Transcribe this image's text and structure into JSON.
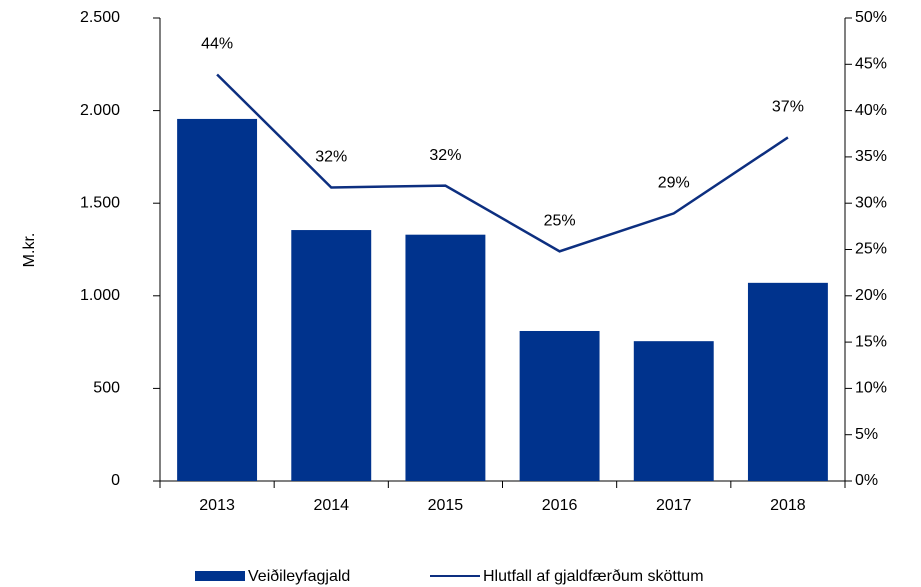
{
  "chart_data": {
    "type": "bar-line",
    "categories": [
      "2013",
      "2014",
      "2015",
      "2016",
      "2017",
      "2018"
    ],
    "y_label": "M.kr.",
    "series": [
      {
        "name": "Veiðileyfagjald",
        "type": "bar",
        "color": "#00338d",
        "values": [
          1955,
          1355,
          1330,
          810,
          755,
          1070
        ]
      },
      {
        "name": "Hlutfall af gjaldfærðum sköttum",
        "type": "line",
        "axis": "y2",
        "color": "#0d2f80",
        "values": [
          43.9,
          31.7,
          31.9,
          24.8,
          28.9,
          37.1
        ],
        "value_labels": [
          "44%",
          "32%",
          "32%",
          "25%",
          "29%",
          "37%"
        ]
      }
    ],
    "ylim": [
      0,
      2500
    ],
    "yticks": [
      0,
      500,
      {
        "value": 1000,
        "label": "1.000"
      },
      {
        "value": 1500,
        "label": "1.500"
      },
      {
        "value": 2000,
        "label": "2.000"
      },
      {
        "value": 2500,
        "label": "2.500"
      }
    ],
    "y2lim": [
      0,
      50
    ],
    "y2ticks": [
      {
        "value": 0,
        "label": "0%"
      },
      {
        "value": 5,
        "label": "5%"
      },
      {
        "value": 10,
        "label": "10%"
      },
      {
        "value": 15,
        "label": "15%"
      },
      {
        "value": 20,
        "label": "20%"
      },
      {
        "value": 25,
        "label": "25%"
      },
      {
        "value": 30,
        "label": "30%"
      },
      {
        "value": 35,
        "label": "35%"
      },
      {
        "value": 40,
        "label": "40%"
      },
      {
        "value": 45,
        "label": "45%"
      },
      {
        "value": 50,
        "label": "50%"
      }
    ],
    "legend": "bottom"
  }
}
